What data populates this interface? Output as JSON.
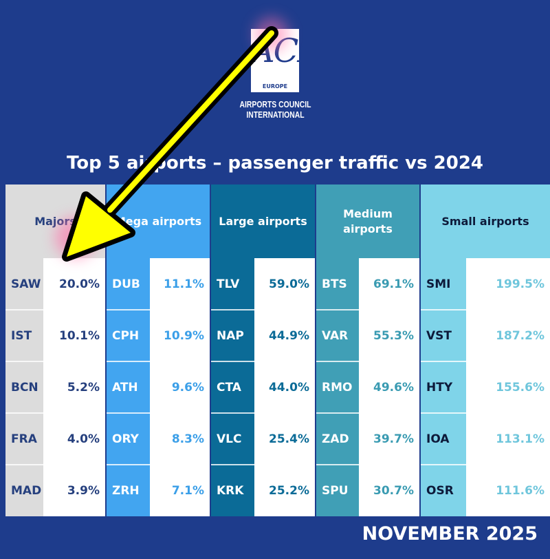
{
  "logo": {
    "text": "ACI",
    "region": "EUROPE",
    "subtitle_line1": "AIRPORTS COUNCIL",
    "subtitle_line2": "INTERNATIONAL"
  },
  "title": "Top 5 airports – passenger traffic vs 2024",
  "footer": "NOVEMBER 2025",
  "annotation": {
    "type": "arrow",
    "color": "#ffff00",
    "points_to": "Majors 20.0%"
  },
  "chart_data": {
    "type": "table",
    "title": "Top 5 airports – passenger traffic vs 2024",
    "groups": [
      {
        "name": "Majors",
        "color": "#dcdcdc",
        "value_color": "#26407e",
        "rows": [
          {
            "code": "SAW",
            "value": "20.0%"
          },
          {
            "code": "IST",
            "value": "10.1%"
          },
          {
            "code": "BCN",
            "value": "5.2%"
          },
          {
            "code": "FRA",
            "value": "4.0%"
          },
          {
            "code": "MAD",
            "value": "3.9%"
          }
        ]
      },
      {
        "name": "Mega airports",
        "color": "#42a5f0",
        "value_color": "#3b9fe8",
        "rows": [
          {
            "code": "DUB",
            "value": "11.1%"
          },
          {
            "code": "CPH",
            "value": "10.9%"
          },
          {
            "code": "ATH",
            "value": "9.6%"
          },
          {
            "code": "ORY",
            "value": "8.3%"
          },
          {
            "code": "ZRH",
            "value": "7.1%"
          }
        ]
      },
      {
        "name": "Large airports",
        "color": "#0b6b97",
        "value_color": "#0b6b97",
        "rows": [
          {
            "code": "TLV",
            "value": "59.0%"
          },
          {
            "code": "NAP",
            "value": "44.9%"
          },
          {
            "code": "CTA",
            "value": "44.0%"
          },
          {
            "code": "VLC",
            "value": "25.4%"
          },
          {
            "code": "KRK",
            "value": "25.2%"
          }
        ]
      },
      {
        "name": "Medium airports",
        "color": "#409fb6",
        "value_color": "#3a9bb2",
        "rows": [
          {
            "code": "BTS",
            "value": "69.1%"
          },
          {
            "code": "VAR",
            "value": "55.3%"
          },
          {
            "code": "RMO",
            "value": "49.6%"
          },
          {
            "code": "ZAD",
            "value": "39.7%"
          },
          {
            "code": "SPU",
            "value": "30.7%"
          }
        ]
      },
      {
        "name": "Small airports",
        "color": "#7fd4e9",
        "value_color": "#6fc6dc",
        "rows": [
          {
            "code": "SMI",
            "value": "199.5%"
          },
          {
            "code": "VST",
            "value": "187.2%"
          },
          {
            "code": "HTY",
            "value": "155.6%"
          },
          {
            "code": "IOA",
            "value": "113.1%"
          },
          {
            "code": "OSR",
            "value": "111.6%"
          }
        ]
      }
    ]
  }
}
